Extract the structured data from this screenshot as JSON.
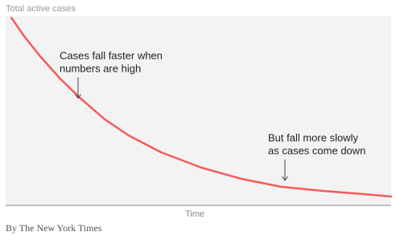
{
  "chart_data": {
    "type": "line",
    "title": "Total active cases",
    "x_label": "Time",
    "x": [
      1.5,
      4.8,
      9.0,
      14.2,
      19.4,
      25.7,
      31.9,
      40.3,
      50.7,
      61.2,
      71.6,
      82.0,
      92.5,
      100
    ],
    "values": [
      99.1,
      89.4,
      78.7,
      66.8,
      56.6,
      45.5,
      37.0,
      28.1,
      20.0,
      14.0,
      9.8,
      7.7,
      6.0,
      4.7
    ],
    "color": "#f45b5b",
    "xlim": [
      0,
      100
    ],
    "ylim": [
      0,
      100
    ],
    "annotations": [
      {
        "lines": [
          "Cases fall faster when",
          "numbers are high"
        ]
      },
      {
        "lines": [
          "But fall more slowly",
          "as cases come down"
        ]
      }
    ],
    "credit": "By The New York Times"
  }
}
